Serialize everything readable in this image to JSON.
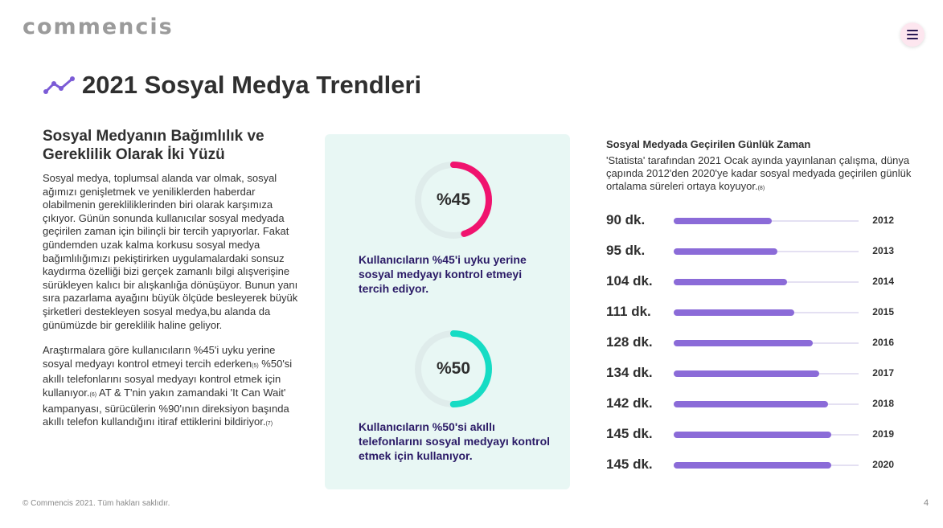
{
  "brand": {
    "logo_text": "commencis"
  },
  "header": {
    "title": "2021 Sosyal Medya Trendleri",
    "menu_icon": "hamburger-icon",
    "accent": "#7b5bd6"
  },
  "left": {
    "heading": "Sosyal Medyanın Bağımlılık ve Gereklilik Olarak İki Yüzü",
    "para1": "Sosyal medya, toplumsal alanda var olmak, sosyal ağımızı genişletmek ve yeniliklerden haberdar olabilmenin gerekliliklerinden biri olarak karşımıza çıkıyor. Günün sonunda kullanıcılar sosyal medyada geçirilen zaman için bilinçli bir tercih yapıyorlar. Fakat gündemden uzak kalma korkusu sosyal medya bağımlılığımızı pekiştirirken uygulamalardaki sonsuz kaydırma özelliği bizi gerçek zamanlı bilgi alışverişine sürükleyen kalıcı bir alışkanlığa dönüşüyor. Bunun yanı sıra pazarlama ayağını büyük ölçüde besleyerek büyük şirketleri destekleyen sosyal medya,bu alanda da günümüzde bir gereklilik haline geliyor.",
    "para2_a": "Araştırmalara göre kullanıcıların %45'i uyku yerine sosyal medyayı kontrol etmeyi tercih ederken",
    "ref_5": "(5)",
    "para2_b": " %50'si akıllı telefonlarını sosyal medyayı kontrol etmek için kullanıyor.",
    "ref_6": "(6)",
    "para2_c": " AT & T'nin yakın zamandaki 'It Can Wait' kampanyası, sürücülerin %90'ının direksiyon başında akıllı telefon kullandığını itiraf ettiklerini bildiriyor.",
    "ref_7": "(7)"
  },
  "stats": [
    {
      "label": "%45",
      "percent": 45,
      "color": "#f0136e",
      "caption": "Kullanıcıların %45'i uyku yerine sosyal medyayı kontrol etmeyi tercih ediyor."
    },
    {
      "label": "%50",
      "percent": 50,
      "color": "#16dcc4",
      "caption": "Kullanıcıların %50'si akıllı telefonlarını sosyal medyayı kontrol etmek için kullanıyor."
    }
  ],
  "chart_data": {
    "type": "bar",
    "title": "Sosyal Medyada Geçirilen Günlük Zaman",
    "description": "'Statista' tarafından 2021 Ocak ayında yayınlanan çalışma, dünya çapında 2012'den 2020'ye kadar sosyal medyada geçirilen günlük ortalama süreleri ortaya koyuyor.",
    "description_ref": "(8)",
    "unit": "dk.",
    "categories": [
      "2012",
      "2013",
      "2014",
      "2015",
      "2016",
      "2017",
      "2018",
      "2019",
      "2020"
    ],
    "values": [
      90,
      95,
      104,
      111,
      128,
      134,
      142,
      145,
      145
    ],
    "value_labels": [
      "90 dk.",
      "95 dk.",
      "104 dk.",
      "111 dk.",
      "128 dk.",
      "134 dk.",
      "142 dk.",
      "145 dk.",
      "145 dk."
    ],
    "xlim": [
      0,
      170
    ],
    "bar_color": "#8b6bd8",
    "track_color": "#e4e0f2"
  },
  "footer": {
    "copyright": "© Commencis 2021. Tüm hakları saklıdır.",
    "page_number": "4"
  }
}
